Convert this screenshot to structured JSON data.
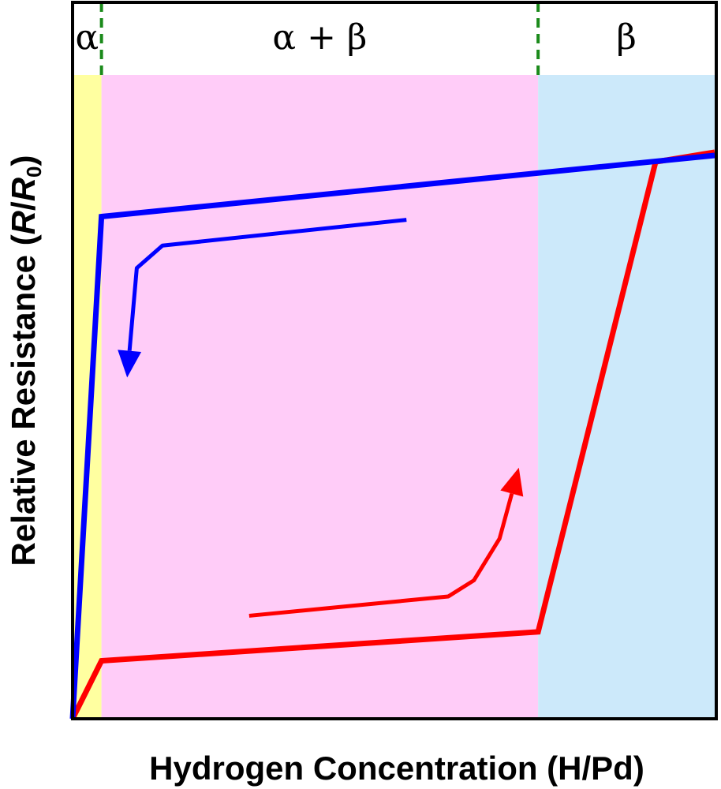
{
  "chart_data": {
    "type": "line",
    "title": "",
    "xlabel": "Hydrogen Concentration (H/Pd)",
    "ylabel": "Relative Resistance (R/R0)",
    "ylabel_parts": {
      "prefix": "Relative Resistance (",
      "r": "R",
      "slash": "/",
      "r0": "R",
      "sub": "0",
      "suffix": ")"
    },
    "xlim": [
      0,
      1
    ],
    "ylim": [
      0,
      1
    ],
    "ticks": false,
    "grid": false,
    "phase_regions": [
      {
        "label": "α",
        "x_start": 0.0,
        "x_end": 0.045,
        "color": "#ffffa0"
      },
      {
        "label": "α + β",
        "x_start": 0.045,
        "x_end": 0.725,
        "color": "#ffccf8"
      },
      {
        "label": "β",
        "x_start": 0.725,
        "x_end": 1.0,
        "color": "#cce9fa"
      }
    ],
    "boundaries": [
      0.045,
      0.725
    ],
    "boundary_color": "#1a8a1a",
    "series": [
      {
        "color": "#ff0000",
        "points": [
          [
            0.0,
            0.0
          ],
          [
            0.045,
            0.09
          ],
          [
            0.725,
            0.135
          ],
          [
            0.908,
            0.865
          ],
          [
            1.0,
            0.88
          ]
        ]
      },
      {
        "color": "#0000ff",
        "points": [
          [
            0.0,
            0.0
          ],
          [
            0.045,
            0.78
          ],
          [
            1.0,
            0.875
          ]
        ]
      }
    ],
    "annotations": [
      {
        "type": "arrow",
        "color": "#ff0000",
        "points": [
          [
            0.275,
            0.16
          ],
          [
            0.585,
            0.19
          ],
          [
            0.625,
            0.215
          ],
          [
            0.665,
            0.28
          ],
          [
            0.695,
            0.39
          ]
        ]
      },
      {
        "type": "arrow",
        "color": "#0000ff",
        "points": [
          [
            0.52,
            0.775
          ],
          [
            0.14,
            0.735
          ],
          [
            0.1,
            0.7
          ],
          [
            0.085,
            0.53
          ]
        ]
      }
    ]
  }
}
